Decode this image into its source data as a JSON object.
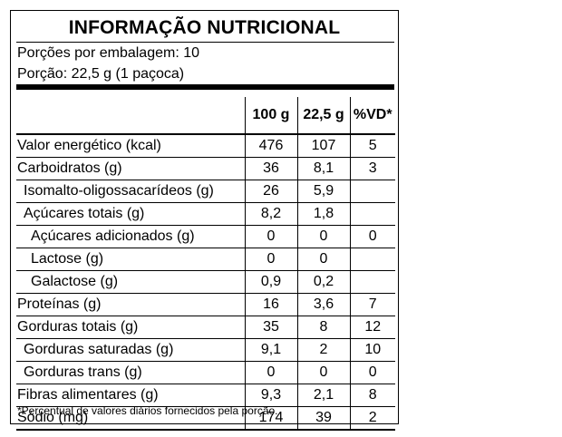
{
  "title": "INFORMAÇÃO NUTRICIONAL",
  "servings_per_package": "Porções por embalagem: 10",
  "serving_size": "Porção: 22,5 g (1 paçoca)",
  "columns": [
    "",
    "100 g",
    "22,5 g",
    "%VD*"
  ],
  "rows": [
    {
      "name": "Valor energético (kcal)",
      "v100": "476",
      "vport": "107",
      "vd": "5",
      "indent": 0
    },
    {
      "name": "Carboidratos (g)",
      "v100": "36",
      "vport": "8,1",
      "vd": "3",
      "indent": 0
    },
    {
      "name": "Isomalto-oligossacarídeos (g)",
      "v100": "26",
      "vport": "5,9",
      "vd": "",
      "indent": 1
    },
    {
      "name": "Açúcares totais (g)",
      "v100": "8,2",
      "vport": "1,8",
      "vd": "",
      "indent": 1
    },
    {
      "name": "Açúcares adicionados (g)",
      "v100": "0",
      "vport": "0",
      "vd": "0",
      "indent": 2
    },
    {
      "name": "Lactose (g)",
      "v100": "0",
      "vport": "0",
      "vd": "",
      "indent": 2
    },
    {
      "name": "Galactose (g)",
      "v100": "0,9",
      "vport": "0,2",
      "vd": "",
      "indent": 2
    },
    {
      "name": "Proteínas (g)",
      "v100": "16",
      "vport": "3,6",
      "vd": "7",
      "indent": 0
    },
    {
      "name": "Gorduras totais (g)",
      "v100": "35",
      "vport": "8",
      "vd": "12",
      "indent": 0
    },
    {
      "name": "Gorduras saturadas (g)",
      "v100": "9,1",
      "vport": "2",
      "vd": "10",
      "indent": 1
    },
    {
      "name": "Gorduras trans (g)",
      "v100": "0",
      "vport": "0",
      "vd": "0",
      "indent": 1
    },
    {
      "name": "Fibras alimentares (g)",
      "v100": "9,3",
      "vport": "2,1",
      "vd": "8",
      "indent": 0
    },
    {
      "name": "Sódio (mg)",
      "v100": "174",
      "vport": "39",
      "vd": "2",
      "indent": 0
    }
  ],
  "footnote": "*Percentual de valores diários fornecidos pela porção."
}
